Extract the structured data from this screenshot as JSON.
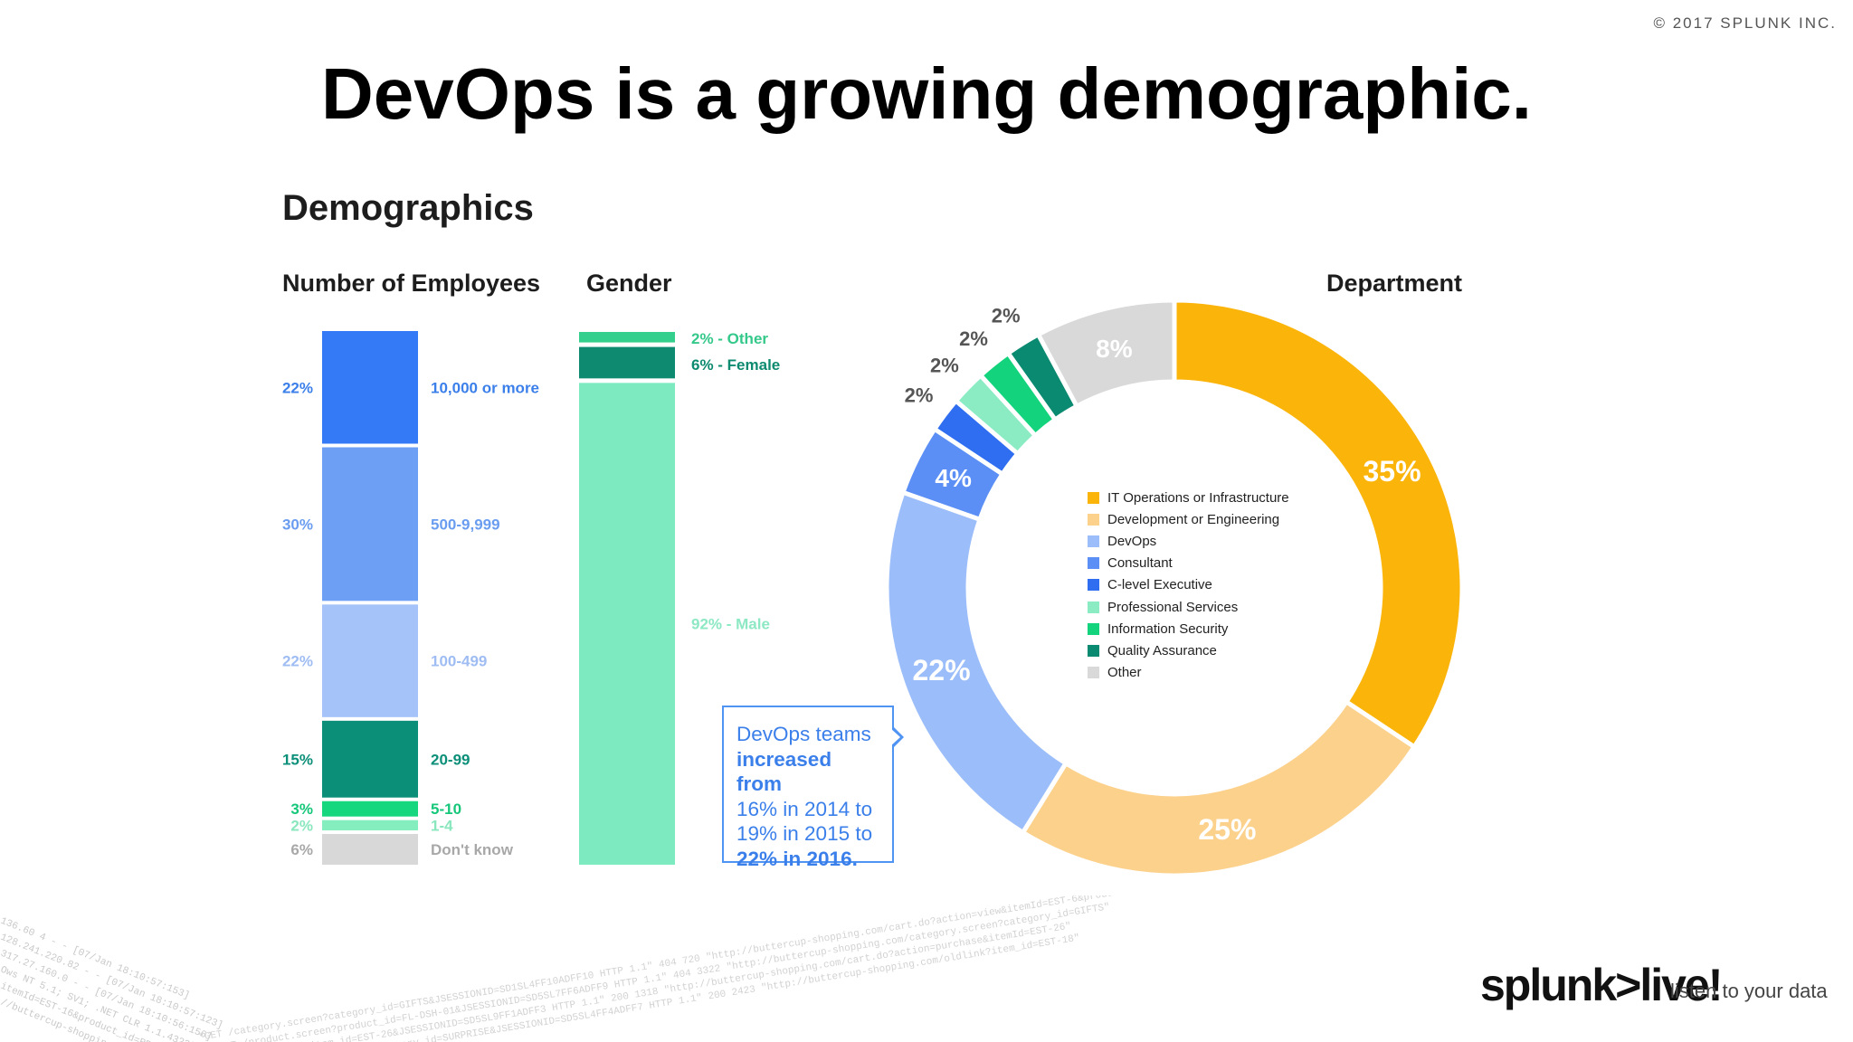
{
  "copyright": "© 2017 SPLUNK INC.",
  "slide_title": "DevOps is a growing demographic.",
  "section_title": "Demographics",
  "panels": {
    "employees": "Number of Employees",
    "gender": "Gender",
    "department": "Department"
  },
  "callout": {
    "line1": "DevOps teams",
    "line2": "increased from",
    "line3": "16% in 2014 to",
    "line4": "19% in 2015 to",
    "line5": "22% in 2016."
  },
  "brand": {
    "logo": "splunk>live!",
    "tagline": "listen to your data"
  },
  "chart_data": [
    {
      "type": "bar",
      "stacked": true,
      "title": "Number of Employees",
      "segments": [
        {
          "label": "10,000 or more",
          "value": 22,
          "pct_label": "22%",
          "color": "#3479f5"
        },
        {
          "label": "500-9,999",
          "value": 30,
          "pct_label": "30%",
          "color": "#6da0f5"
        },
        {
          "label": "100-499",
          "value": 22,
          "pct_label": "22%",
          "color": "#a5c3f9"
        },
        {
          "label": "20-99",
          "value": 15,
          "pct_label": "15%",
          "color": "#0b8f78"
        },
        {
          "label": "5-10",
          "value": 3,
          "pct_label": "3%",
          "color": "#16d77e"
        },
        {
          "label": "1-4",
          "value": 2,
          "pct_label": "2%",
          "color": "#84eebe"
        },
        {
          "label": "Don't know",
          "value": 6,
          "pct_label": "6%",
          "color": "#d8d8d8"
        }
      ]
    },
    {
      "type": "bar",
      "stacked": true,
      "title": "Gender",
      "segments": [
        {
          "label": "Other",
          "value": 2,
          "pct_label": "2%",
          "color": "#34cf8c"
        },
        {
          "label": "Female",
          "value": 6,
          "pct_label": "6%",
          "color": "#0d8a6f"
        },
        {
          "label": "Male",
          "value": 92,
          "pct_label": "92%",
          "color": "#7eeabf"
        }
      ]
    },
    {
      "type": "pie",
      "donut": true,
      "title": "Department",
      "slices": [
        {
          "label": "IT Operations or Infrastructure",
          "value": 35,
          "pct_label": "35%",
          "color": "#fbb40a"
        },
        {
          "label": "Development or Engineering",
          "value": 25,
          "pct_label": "25%",
          "color": "#fcd18c"
        },
        {
          "label": "DevOps",
          "value": 22,
          "pct_label": "22%",
          "color": "#9bbdfa"
        },
        {
          "label": "Consultant",
          "value": 4,
          "pct_label": "4%",
          "color": "#5b8ff5"
        },
        {
          "label": "C-level Executive",
          "value": 2,
          "pct_label": "2%",
          "color": "#2f6ef0"
        },
        {
          "label": "Professional Services",
          "value": 2,
          "pct_label": "2%",
          "color": "#8becc4"
        },
        {
          "label": "Information Security",
          "value": 2,
          "pct_label": "2%",
          "color": "#13d47d"
        },
        {
          "label": "Quality Assurance",
          "value": 2,
          "pct_label": "2%",
          "color": "#0a8a70"
        },
        {
          "label": "Other",
          "value": 8,
          "pct_label": "8%",
          "color": "#d9d9d9"
        }
      ]
    }
  ]
}
